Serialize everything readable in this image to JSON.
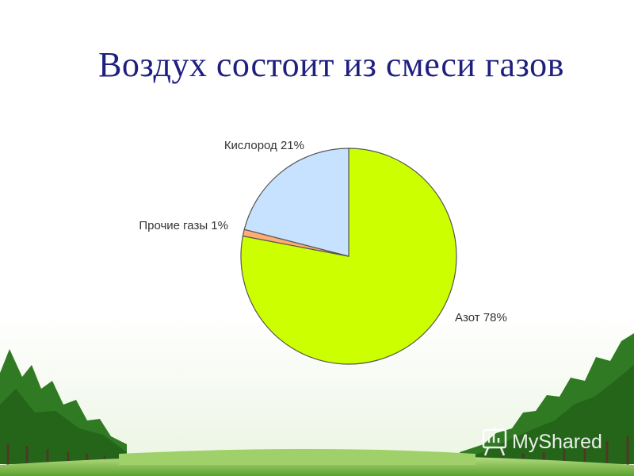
{
  "slide": {
    "title": "Воздух состоит из смеси газов",
    "watermark": "MyShared"
  },
  "chart_data": {
    "type": "pie",
    "title": "",
    "slices": [
      {
        "label": "Азот",
        "label_text": "Азот 78%",
        "value": 78,
        "color": "#ccff00"
      },
      {
        "label": "Прочие газы",
        "label_text": "Прочие газы 1%",
        "value": 1,
        "color": "#ffad73"
      },
      {
        "label": "Кислород",
        "label_text": "Кислород 21%",
        "value": 21,
        "color": "#c6e2ff"
      }
    ],
    "start_angle_deg": 0,
    "direction": "clockwise",
    "legend": "none",
    "labels": "outside"
  }
}
